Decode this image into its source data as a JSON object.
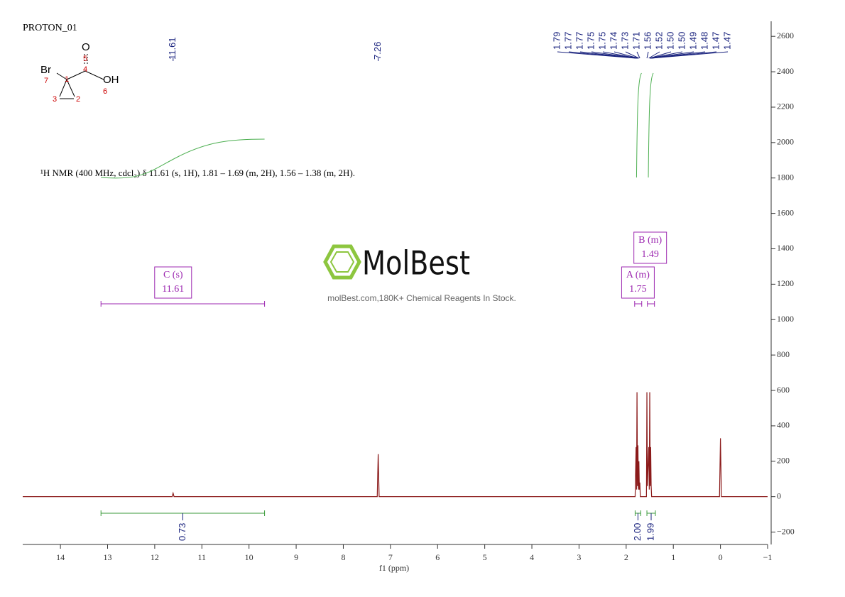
{
  "title": "PROTON_01",
  "description": "¹H NMR (400 MHz, cdcl₃) δ 11.61 (s, 1H), 1.81 – 1.69 (m, 2H), 1.56 – 1.38 (m, 2H).",
  "structure": {
    "atoms": [
      "Br",
      "O",
      "OH"
    ],
    "numbers": [
      1,
      2,
      3,
      4,
      5,
      6,
      7
    ]
  },
  "watermark": {
    "logo": "MolBest",
    "tagline": "molBest.com,180K+ Chemical Reagents In Stock."
  },
  "chart_data": {
    "type": "line",
    "x_label": "f1 (ppm)",
    "xlim": [
      14.8,
      -1
    ],
    "xticks": [
      14,
      13,
      12,
      11,
      10,
      9,
      8,
      7,
      6,
      5,
      4,
      3,
      2,
      1,
      0,
      {
        "value": -1,
        "label": "−1"
      }
    ],
    "ylim": [
      -270,
      2685
    ],
    "yticks": [
      {
        "value": -200,
        "label": "−200"
      },
      0,
      200,
      400,
      600,
      800,
      1000,
      1200,
      1400,
      1600,
      1800,
      2000,
      2200,
      2400,
      2600
    ],
    "series": [
      {
        "name": "spectrum",
        "color": "#8b1a1a",
        "x": [
          14.8,
          11.63,
          11.61,
          11.59,
          7.28,
          7.26,
          7.24,
          1.81,
          1.79,
          1.78,
          1.77,
          1.76,
          1.75,
          1.74,
          1.73,
          1.72,
          1.71,
          1.7,
          1.57,
          1.56,
          1.55,
          1.52,
          1.51,
          1.5,
          1.49,
          1.48,
          1.47,
          1.46,
          0.02,
          0,
          -0.02,
          -1
        ],
        "values": [
          0,
          0,
          20,
          0,
          0,
          240,
          0,
          0,
          280,
          40,
          590,
          60,
          290,
          40,
          200,
          40,
          80,
          0,
          0,
          590,
          60,
          280,
          40,
          590,
          60,
          280,
          60,
          0,
          0,
          330,
          0,
          0
        ]
      }
    ],
    "peak_labels": [
      11.61,
      7.26,
      1.79,
      1.77,
      1.77,
      1.75,
      1.75,
      1.74,
      1.73,
      1.71,
      1.56,
      1.52,
      {
        "value": 1.5,
        "label": "1.50"
      },
      {
        "value": 1.5,
        "label": "1.50"
      },
      1.49,
      1.48,
      1.47,
      1.47
    ],
    "integrals": [
      {
        "range": [
          13.14,
          9.67
        ],
        "value": 0.73
      },
      {
        "range": [
          1.81,
          1.69
        ],
        "value": {
          "value": 2,
          "label": "2.00"
        }
      },
      {
        "range": [
          1.56,
          1.38
        ],
        "value": 1.99
      }
    ],
    "multiplets": [
      {
        "name": "C (s)",
        "shift": 11.61,
        "range": [
          13.14,
          9.67
        ]
      },
      {
        "name": "A (m)",
        "shift": 1.75,
        "range": [
          1.82,
          1.67
        ]
      },
      {
        "name": "B (m)",
        "shift": 1.49,
        "range": [
          1.55,
          1.4
        ]
      }
    ]
  }
}
